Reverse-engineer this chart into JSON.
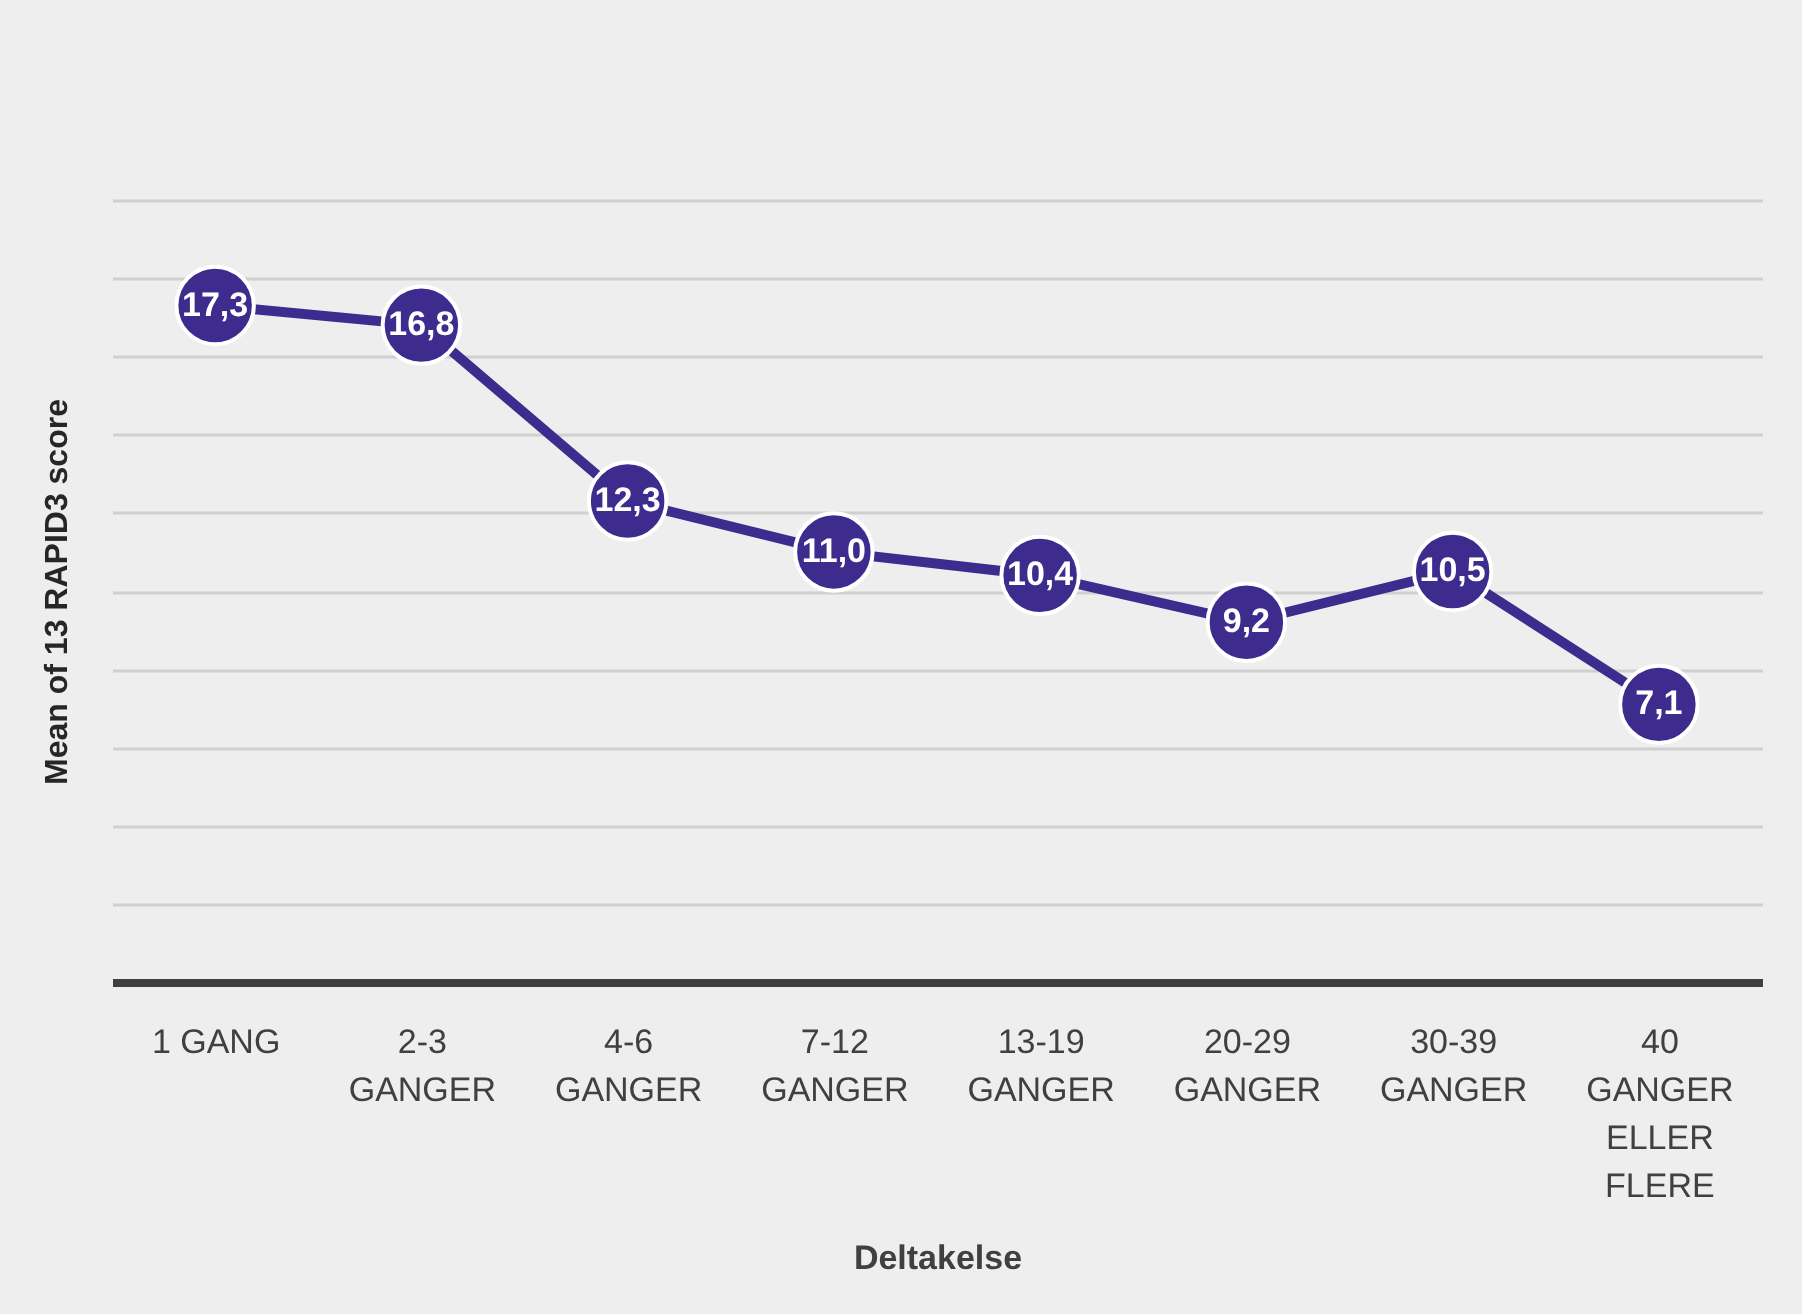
{
  "chart_data": {
    "type": "line",
    "xlabel": "Deltakelse",
    "ylabel": "Mean of 13 RAPID3 score",
    "categories": [
      "1 GANG",
      "2-3 GANGER",
      "4-6 GANGER",
      "7-12 GANGER",
      "13-19 GANGER",
      "20-29 GANGER",
      "30-39 GANGER",
      "40 GANGER ELLER FLERE"
    ],
    "series": [
      {
        "color": "#3d2b8e",
        "values": [
          17.3,
          16.8,
          12.3,
          11.0,
          10.4,
          9.2,
          10.5,
          7.1
        ],
        "value_labels": [
          "17,3",
          "16,8",
          "12,3",
          "11,0",
          "10,4",
          "9,2",
          "10,5",
          "7,1"
        ]
      }
    ],
    "ylim": [
      0,
      20
    ],
    "grid": "y",
    "tick_labels": "x",
    "marker": "circle",
    "line_style": "solid"
  }
}
